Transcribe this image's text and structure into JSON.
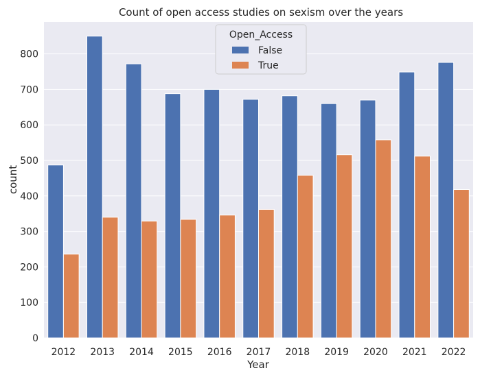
{
  "chart_data": {
    "type": "bar",
    "title": "Count of open access studies on sexism over the years",
    "xlabel": "Year",
    "ylabel": "count",
    "categories": [
      "2012",
      "2013",
      "2014",
      "2015",
      "2016",
      "2017",
      "2018",
      "2019",
      "2020",
      "2021",
      "2022"
    ],
    "series": [
      {
        "name": "False",
        "color": "#4c72b0",
        "values": [
          487,
          850,
          772,
          688,
          700,
          672,
          682,
          660,
          670,
          749,
          776
        ]
      },
      {
        "name": "True",
        "color": "#dd8452",
        "values": [
          236,
          340,
          329,
          334,
          346,
          362,
          458,
          516,
          558,
          512,
          418
        ]
      }
    ],
    "ylim": [
      0,
      890
    ],
    "yticks": [
      0,
      100,
      200,
      300,
      400,
      500,
      600,
      700,
      800
    ],
    "legend": {
      "title": "Open_Access",
      "position": "upper-center"
    },
    "grid": true,
    "background": "#eaeaf2"
  }
}
